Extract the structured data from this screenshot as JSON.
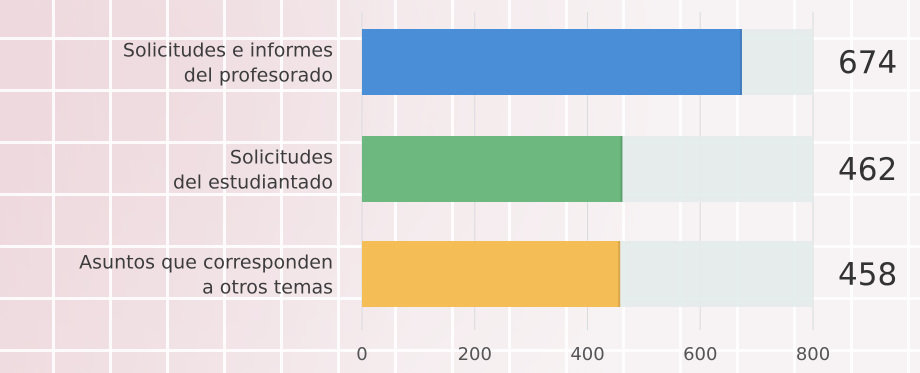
{
  "chart_data": {
    "type": "bar",
    "orientation": "horizontal",
    "categories": [
      [
        "Solicitudes e informes",
        "del profesorado"
      ],
      [
        "Solicitudes",
        "del estudiantado"
      ],
      [
        "Asuntos que corresponden",
        "a otros temas"
      ]
    ],
    "values": [
      674,
      462,
      458
    ],
    "value_labels": [
      "674",
      "462",
      "458"
    ],
    "colors": [
      "#4a8ed8",
      "#6db87e",
      "#f5bd56"
    ],
    "track_color": "#e3ebeb",
    "xlim": [
      0,
      800
    ],
    "xticks": [
      0,
      200,
      400,
      600,
      800
    ],
    "xtick_labels": [
      "0",
      "200",
      "400",
      "600",
      "800"
    ],
    "grid": true,
    "title": "",
    "xlabel": "",
    "ylabel": ""
  }
}
